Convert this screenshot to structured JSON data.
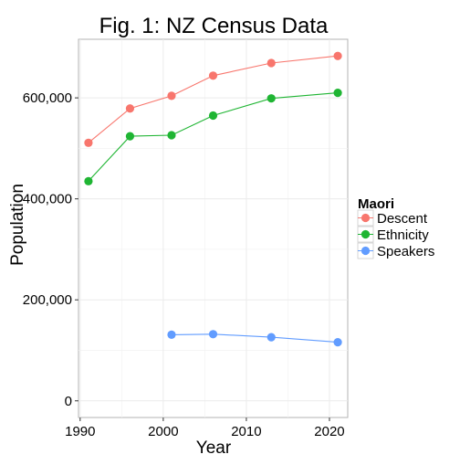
{
  "chart_data": {
    "type": "line",
    "title": "Fig. 1: NZ Census Data",
    "xlabel": "Year",
    "ylabel": "Population",
    "xlim": [
      1989.8,
      2022.2
    ],
    "ylim": [
      -33000,
      716000
    ],
    "x_ticks": [
      1990,
      2000,
      2010,
      2020
    ],
    "x_tick_labels": [
      "1990",
      "2000",
      "2010",
      "2020"
    ],
    "y_ticks": [
      0,
      200000,
      400000,
      600000
    ],
    "y_tick_labels": [
      "0",
      "200,000",
      "400,000",
      "600,000"
    ],
    "grid": true,
    "legend": {
      "title": "Maori",
      "placement": "right"
    },
    "series": [
      {
        "name": "Descent",
        "color": "#F8766D",
        "x": [
          1991,
          1996,
          2001,
          2006,
          2013,
          2021
        ],
        "values": [
          511000,
          579000,
          604000,
          644000,
          669000,
          683000
        ]
      },
      {
        "name": "Ethnicity",
        "color": "#1FB533",
        "x": [
          1991,
          1996,
          2001,
          2006,
          2013,
          2021
        ],
        "values": [
          435000,
          524000,
          526000,
          565000,
          599000,
          610000
        ]
      },
      {
        "name": "Speakers",
        "color": "#619CFF",
        "x": [
          2001,
          2006,
          2013,
          2021
        ],
        "values": [
          131000,
          132000,
          126000,
          116000
        ]
      }
    ]
  }
}
